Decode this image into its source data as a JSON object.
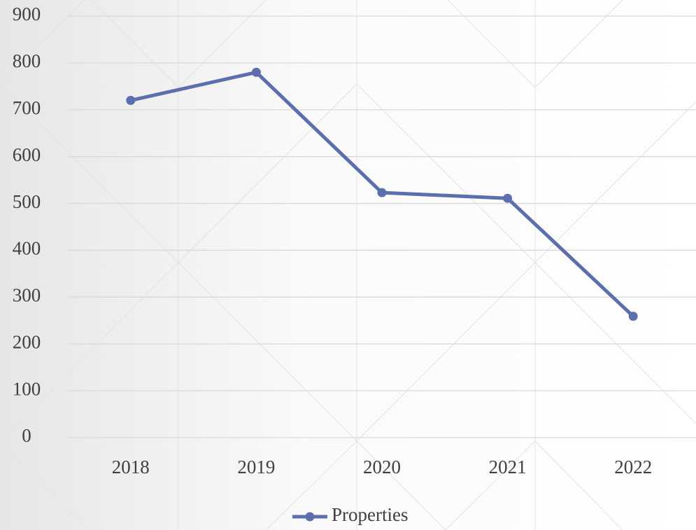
{
  "chart_data": {
    "type": "line",
    "categories": [
      "2018",
      "2019",
      "2020",
      "2021",
      "2022"
    ],
    "series": [
      {
        "name": "Properties",
        "color": "#5b6eae",
        "values": [
          720,
          780,
          523,
          511,
          259
        ]
      }
    ],
    "ylim": [
      0,
      900
    ],
    "yticks": [
      0,
      100,
      200,
      300,
      400,
      500,
      600,
      700,
      800,
      900
    ],
    "grid": true,
    "legend": "bottom"
  }
}
